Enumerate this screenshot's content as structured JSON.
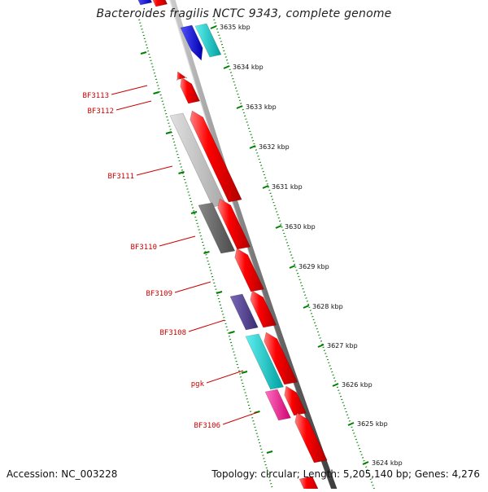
{
  "title": "Bacteroides fragilis NCTC 9343, complete genome",
  "accession_label": "Accession: NC_003228",
  "summary_label": "Topology: circular; Length: 5,205,140 bp; Genes: 4,276",
  "kbp_ticks": [
    "3635 kbp",
    "3634 kbp",
    "3633 kbp",
    "3632 kbp",
    "3631 kbp",
    "3630 kbp",
    "3629 kbp",
    "3628 kbp",
    "3627 kbp",
    "3626 kbp",
    "3625 kbp",
    "3624 kbp"
  ],
  "gene_labels": [
    "BF3113",
    "BF3112",
    "BF3111",
    "BF3110",
    "BF3109",
    "BF3108",
    "pgk",
    "BF3106"
  ],
  "colors": {
    "forward_gene": "#ff0000",
    "grey_gene": "#bdbdbd",
    "dark_gene": "#666666",
    "blue_gene": "#1a1aff",
    "cyan_gene": "#00cccc",
    "purple_gene": "#55428f",
    "magenta_gene": "#ff1493",
    "tick_color": "#008000",
    "label_color": "#cc0000"
  }
}
